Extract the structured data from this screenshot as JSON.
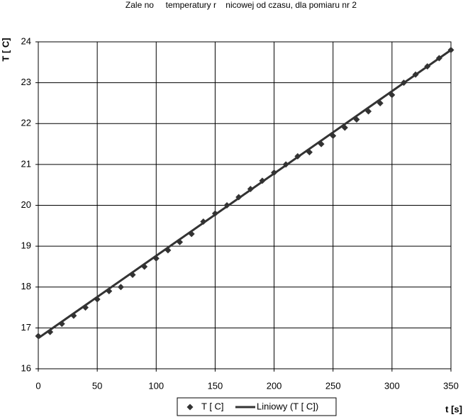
{
  "chart_data": {
    "type": "scatter",
    "title": "Zale no     temperatury r    nicowej od czasu, dla pomiaru nr 2",
    "xlabel": "t [s]",
    "ylabel": "T [ C]",
    "xlim": [
      0,
      350
    ],
    "xticks": [
      0,
      50,
      100,
      150,
      200,
      250,
      300,
      350
    ],
    "ylim": [
      16,
      24
    ],
    "yticks": [
      16,
      17,
      18,
      19,
      20,
      21,
      22,
      23,
      24
    ],
    "grid": true,
    "legend": "bottom",
    "series": [
      {
        "name": "T [ C]",
        "color": "#333333",
        "marker": "diamond",
        "x": [
          0,
          10,
          20,
          30,
          40,
          50,
          60,
          70,
          80,
          90,
          100,
          110,
          120,
          130,
          140,
          150,
          160,
          170,
          180,
          190,
          200,
          210,
          220,
          230,
          240,
          250,
          260,
          270,
          280,
          290,
          300,
          310,
          320,
          330,
          340,
          350
        ],
        "values": [
          16.8,
          16.9,
          17.1,
          17.3,
          17.5,
          17.7,
          17.9,
          18.0,
          18.3,
          18.5,
          18.7,
          18.9,
          19.1,
          19.3,
          19.6,
          19.8,
          20.0,
          20.2,
          20.4,
          20.6,
          20.8,
          21.0,
          21.2,
          21.3,
          21.5,
          21.7,
          21.9,
          22.1,
          22.3,
          22.5,
          22.7,
          23.0,
          23.2,
          23.4,
          23.6,
          23.8
        ]
      },
      {
        "name": "Liniowy (T [ C])",
        "color": "#333333",
        "marker": "line",
        "x": [
          0,
          350
        ],
        "values": [
          16.75,
          23.8
        ]
      }
    ]
  }
}
